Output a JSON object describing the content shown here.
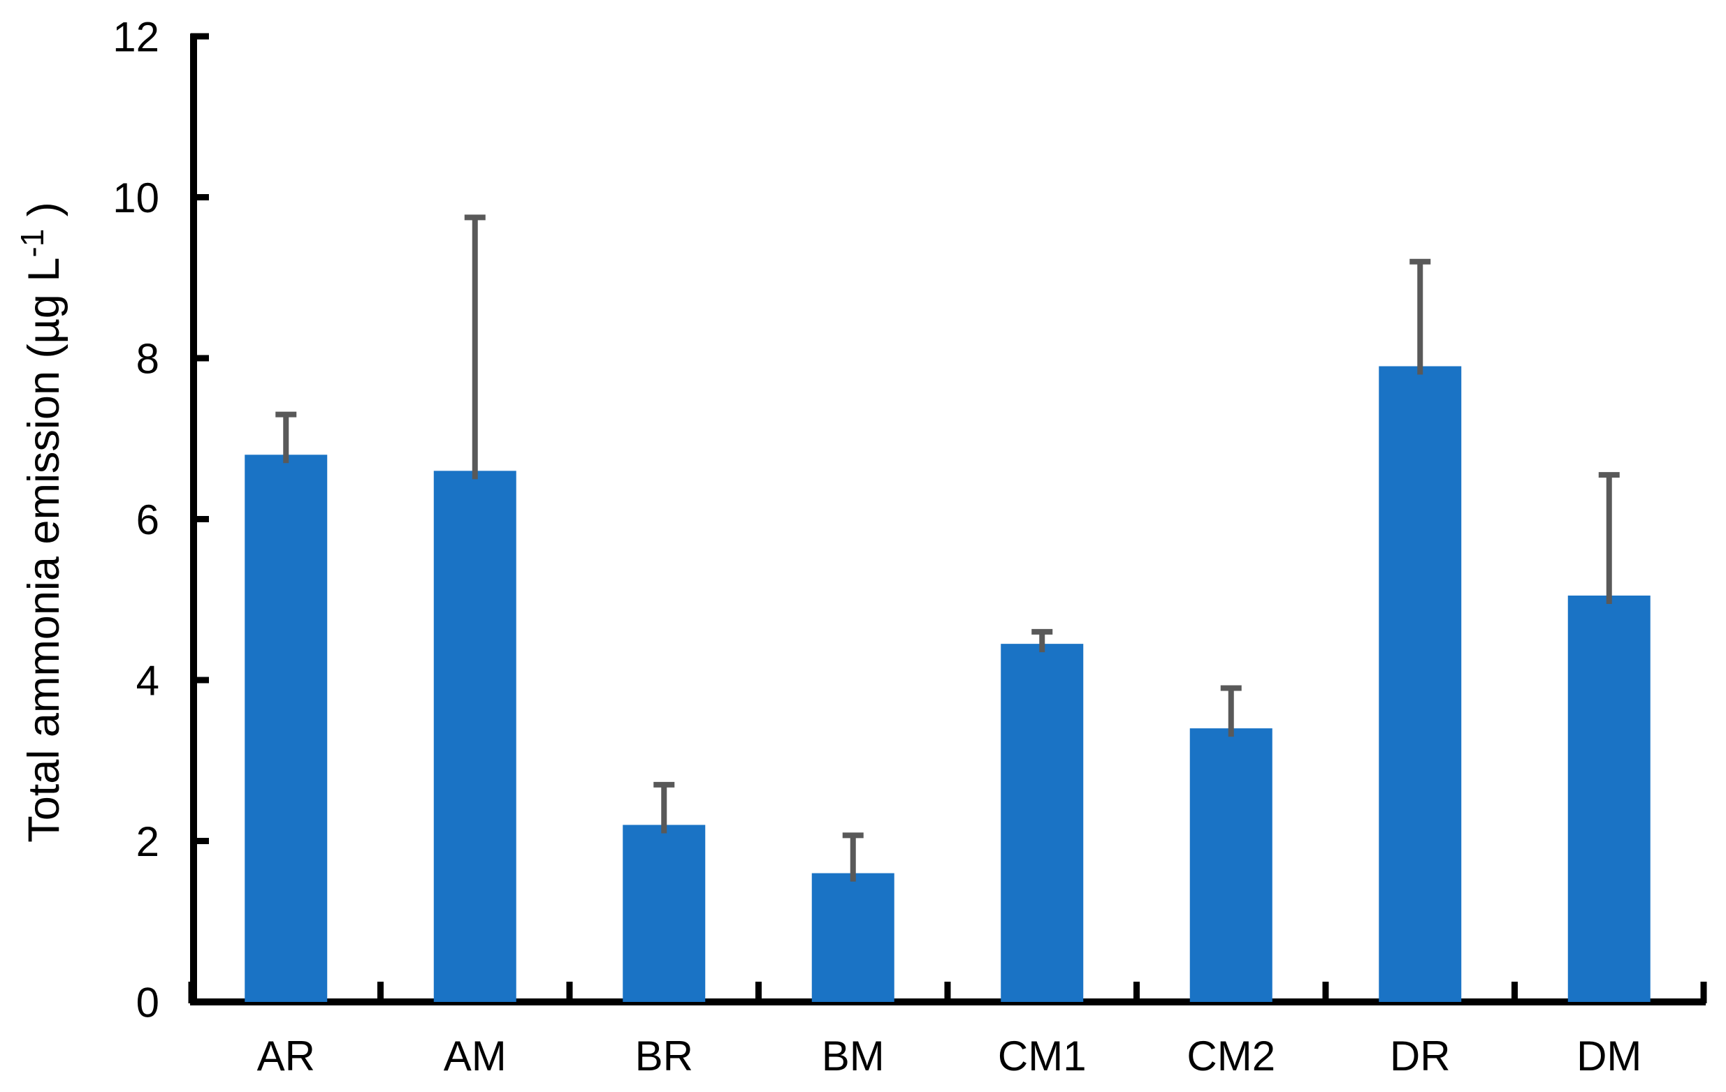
{
  "chart_data": {
    "type": "bar",
    "title": "",
    "categories": [
      "AR",
      "AM",
      "BR",
      "BM",
      "CM1",
      "CM2",
      "DR",
      "DM"
    ],
    "values": [
      6.8,
      6.6,
      2.2,
      1.6,
      4.45,
      3.4,
      7.9,
      5.05
    ],
    "error_plus": [
      0.5,
      3.15,
      0.5,
      0.47,
      0.15,
      0.5,
      1.3,
      1.5
    ],
    "ylabel": "Total ammonia emission (µg L⁻¹ )",
    "ylabel_parts": {
      "main": "Total ammonia emission (µg L",
      "sup": "-1",
      "close": " )"
    },
    "xlabel": "",
    "ylim": [
      0,
      12
    ],
    "yticks": [
      0,
      2,
      4,
      6,
      8,
      10,
      12
    ],
    "grid": false,
    "legend": false,
    "bar_color": "#1A73C5",
    "error_color": "#595959",
    "axis_color": "#000000",
    "background_color": "#FFFFFF"
  }
}
